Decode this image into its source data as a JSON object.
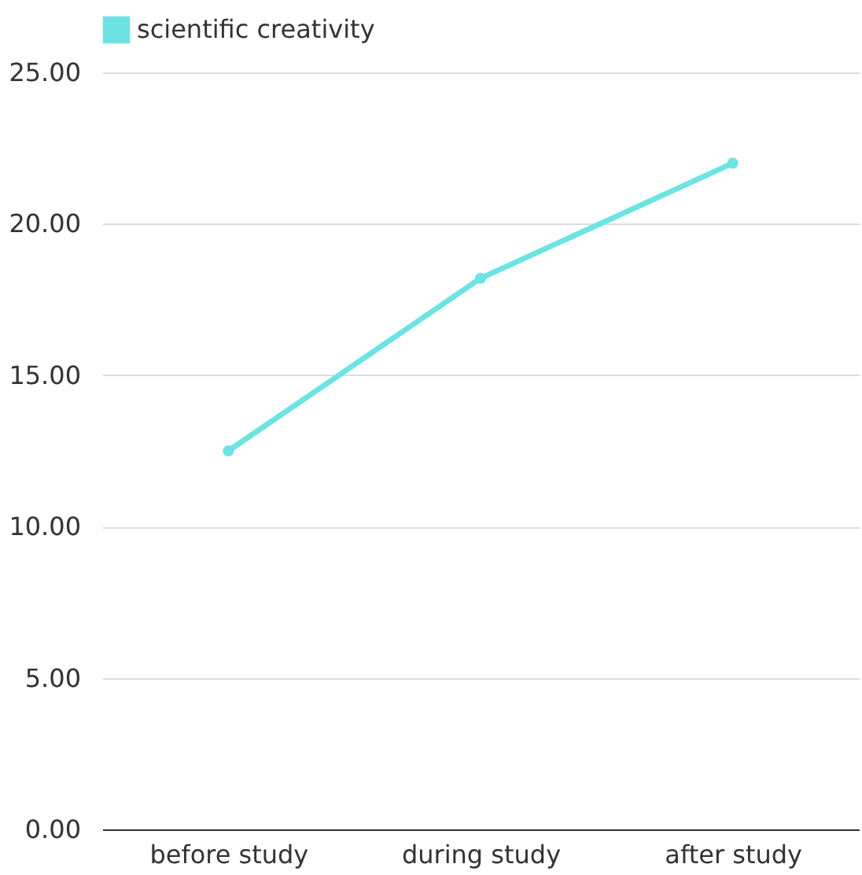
{
  "chart_data": {
    "type": "line",
    "categories": [
      "before study",
      "during study",
      "after study"
    ],
    "series": [
      {
        "name": "scientific creativity",
        "color": "#6ee3e3",
        "values": [
          12.5,
          18.2,
          22.0
        ]
      }
    ],
    "ylim": [
      0,
      25
    ],
    "yticks": [
      {
        "value": 0,
        "label": "0.00"
      },
      {
        "value": 5,
        "label": "5.00"
      },
      {
        "value": 10,
        "label": "10.00"
      },
      {
        "value": 15,
        "label": "15.00"
      },
      {
        "value": 20,
        "label": "20.00"
      },
      {
        "value": 25,
        "label": "25.00"
      }
    ],
    "grid": "y",
    "legend": "top",
    "marker": "circle",
    "line_style": "solid"
  }
}
